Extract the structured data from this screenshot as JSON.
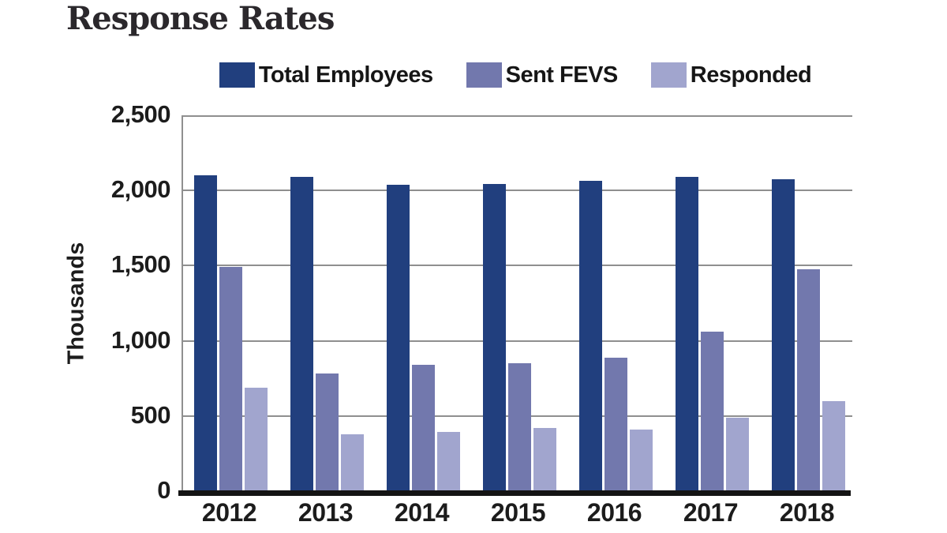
{
  "title": "Response Rates",
  "chart_data": {
    "type": "bar",
    "title": "Response Rates",
    "xlabel": "",
    "ylabel": "Thousands",
    "ylim": [
      0,
      2500
    ],
    "grid": true,
    "legend_position": "top",
    "grid_color": "#8F8F8F",
    "axis_color": "#141414",
    "text_color": "#1C1C1C",
    "yticks": [
      {
        "value": 0,
        "label": "0"
      },
      {
        "value": 500,
        "label": "500"
      },
      {
        "value": 1000,
        "label": "1,000"
      },
      {
        "value": 1500,
        "label": "1,500"
      },
      {
        "value": 2000,
        "label": "2,000"
      },
      {
        "value": 2500,
        "label": "2,500"
      }
    ],
    "categories": [
      "2012",
      "2013",
      "2014",
      "2015",
      "2016",
      "2017",
      "2018"
    ],
    "series": [
      {
        "name": "Total Employees",
        "color": "#213F7E",
        "values": [
          2100,
          2090,
          2040,
          2045,
          2065,
          2090,
          2075
        ]
      },
      {
        "name": "Sent FEVS",
        "color": "#7278AD",
        "values": [
          1492,
          781,
          840,
          849,
          890,
          1062,
          1474
        ]
      },
      {
        "name": "Responded",
        "color": "#A1A5CE",
        "values": [
          687,
          377,
          393,
          422,
          408,
          486,
          598
        ]
      }
    ]
  }
}
